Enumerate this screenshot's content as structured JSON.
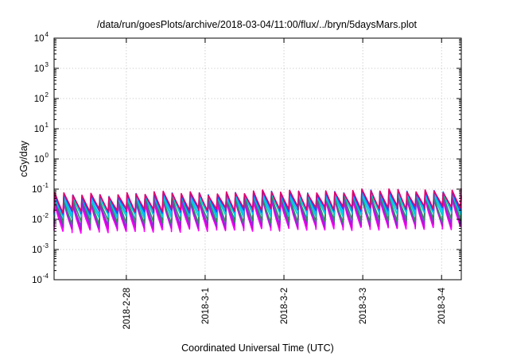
{
  "chart_data": {
    "type": "line",
    "title": "/data/run/goesPlots/archive/2018-03-04/11:00/flux/../bryn/5daysMars.plot",
    "xlabel": "Coordinated Universal Time (UTC)",
    "ylabel": "cGy/day",
    "yscale": "log",
    "ylim": [
      0.0001,
      10000
    ],
    "xlim": [
      "2018-02-27T02:00",
      "2018-03-04T06:00"
    ],
    "x_ticks": [
      {
        "value": "2018-02-28T00:00",
        "label": "2018-2-28"
      },
      {
        "value": "2018-03-01T00:00",
        "label": "2018-3-1"
      },
      {
        "value": "2018-03-02T00:00",
        "label": "2018-3-2"
      },
      {
        "value": "2018-03-03T00:00",
        "label": "2018-3-3"
      },
      {
        "value": "2018-03-04T00:00",
        "label": "2018-3-4"
      }
    ],
    "y_ticks": [
      {
        "base": "10",
        "exp": "-4"
      },
      {
        "base": "10",
        "exp": "-3"
      },
      {
        "base": "10",
        "exp": "-2"
      },
      {
        "base": "10",
        "exp": "-1"
      },
      {
        "base": "10",
        "exp": "0"
      },
      {
        "base": "10",
        "exp": "1"
      },
      {
        "base": "10",
        "exp": "2"
      },
      {
        "base": "10",
        "exp": "3"
      },
      {
        "base": "10",
        "exp": "4"
      }
    ],
    "grid": true,
    "sawtooth_period_hours": 2.75,
    "series": [
      {
        "color": "#ff00ff",
        "peak_start": 0.028,
        "peak_end": 0.05,
        "trough_start": 0.004,
        "trough_end": 0.0055
      },
      {
        "color": "#d400d4",
        "peak_start": 0.032,
        "peak_end": 0.055,
        "trough_start": 0.005,
        "trough_end": 0.0065
      },
      {
        "color": "#8a2be2",
        "peak_start": 0.038,
        "peak_end": 0.06,
        "trough_start": 0.006,
        "trough_end": 0.008
      },
      {
        "color": "#2e8b57",
        "peak_start": 0.045,
        "peak_end": 0.068,
        "trough_start": 0.008,
        "trough_end": 0.01
      },
      {
        "color": "#00ced1",
        "peak_start": 0.05,
        "peak_end": 0.075,
        "trough_start": 0.012,
        "trough_end": 0.016
      },
      {
        "color": "#00bfff",
        "peak_start": 0.055,
        "peak_end": 0.085,
        "trough_start": 0.014,
        "trough_end": 0.02
      },
      {
        "color": "#1e50ff",
        "peak_start": 0.06,
        "peak_end": 0.09,
        "trough_start": 0.017,
        "trough_end": 0.024
      },
      {
        "color": "#e0006e",
        "peak_start": 0.065,
        "peak_end": 0.095,
        "trough_start": 0.019,
        "trough_end": 0.027
      }
    ]
  }
}
